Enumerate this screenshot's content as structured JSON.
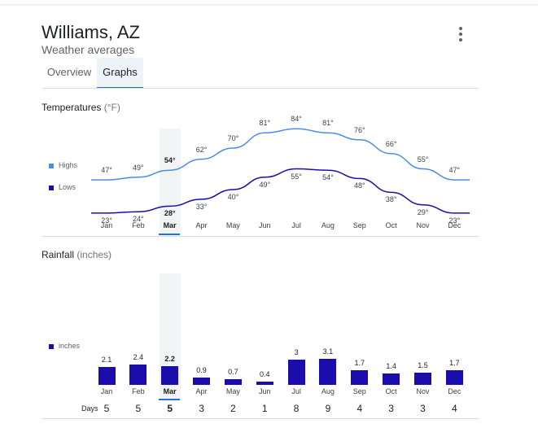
{
  "header": {
    "title": "Williams, AZ",
    "subtitle": "Weather averages"
  },
  "tabs": [
    {
      "label": "Overview",
      "selected": false
    },
    {
      "label": "Graphs",
      "selected": true
    }
  ],
  "temperatures": {
    "title": "Temperatures",
    "unit": "(°F)",
    "legend": {
      "highs": "Highs",
      "lows": "Lows"
    },
    "colors": {
      "highs": "#4a8ee6",
      "lows": "#1a0dab"
    }
  },
  "rainfall": {
    "title": "Rainfall",
    "unit": "(inches)",
    "legend": "inches",
    "days_label": "Days",
    "bar_color": "#1a0dab"
  },
  "selected_month": "Mar",
  "chart_data": [
    {
      "type": "line",
      "title": "Temperatures (°F)",
      "categories": [
        "Jan",
        "Feb",
        "Mar",
        "Apr",
        "May",
        "Jun",
        "Jul",
        "Aug",
        "Sep",
        "Oct",
        "Nov",
        "Dec"
      ],
      "series": [
        {
          "name": "Highs",
          "values": [
            47,
            49,
            54,
            62,
            70,
            81,
            84,
            81,
            76,
            66,
            55,
            47
          ],
          "labels": [
            "47°",
            "49°",
            "54°",
            "62°",
            "70°",
            "81°",
            "84°",
            "81°",
            "76°",
            "66°",
            "55°",
            "47°"
          ]
        },
        {
          "name": "Lows",
          "values": [
            23,
            24,
            28,
            33,
            40,
            49,
            55,
            54,
            48,
            38,
            29,
            23
          ],
          "labels": [
            "23°",
            "24°",
            "28°",
            "33°",
            "40°",
            "49°",
            "55°",
            "54°",
            "48°",
            "38°",
            "29°",
            "23°"
          ]
        }
      ]
    },
    {
      "type": "bar",
      "title": "Rainfall (inches)",
      "categories": [
        "Jan",
        "Feb",
        "Mar",
        "Apr",
        "May",
        "Jun",
        "Jul",
        "Aug",
        "Sep",
        "Oct",
        "Nov",
        "Dec"
      ],
      "series": [
        {
          "name": "inches",
          "values": [
            2.1,
            2.4,
            2.2,
            0.9,
            0.7,
            0.4,
            3,
            3.1,
            1.7,
            1.4,
            1.5,
            1.7
          ],
          "labels": [
            "2.1",
            "2.4",
            "2.2",
            "0.9",
            "0.7",
            "0.4",
            "3",
            "3.1",
            "1.7",
            "1.4",
            "1.5",
            "1.7"
          ]
        }
      ],
      "days": [
        "5",
        "5",
        "5",
        "3",
        "2",
        "1",
        "8",
        "9",
        "4",
        "3",
        "3",
        "4"
      ]
    }
  ]
}
